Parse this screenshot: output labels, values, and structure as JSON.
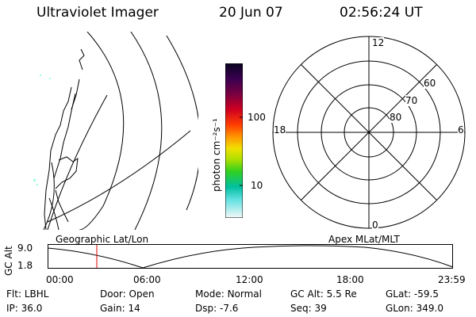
{
  "header": {
    "instrument": "Ultraviolet Imager",
    "date": "20 Jun 07",
    "time": "02:56:24 UT"
  },
  "colorbar": {
    "unit_label": "photon cm⁻²s⁻¹",
    "ticks": [
      "100",
      "10"
    ]
  },
  "polar_plot": {
    "mlt_labels": {
      "top": "12",
      "bottom": "0",
      "left": "18",
      "right": "6"
    },
    "lat_labels": [
      "60",
      "70",
      "80"
    ]
  },
  "orbit_panel": {
    "left_title": "Geographic Lat/Lon",
    "right_title": "Apex MLat/MLT",
    "axis_label": "GC Alt",
    "y_ticks": [
      "9.0",
      "1.8"
    ],
    "time_ticks": [
      "00:00",
      "06:00",
      "12:00",
      "18:00",
      "23:59"
    ]
  },
  "status": {
    "row1": [
      {
        "key": "Flt:",
        "value": "LBHL"
      },
      {
        "key": "Door:",
        "value": "Open"
      },
      {
        "key": "Mode:",
        "value": "Normal"
      },
      {
        "key": "GC Alt:",
        "value": "5.5 Re"
      },
      {
        "key": "GLat:",
        "value": "-59.5"
      }
    ],
    "row2": [
      {
        "key": "IP:",
        "value": "36.0"
      },
      {
        "key": "Gain:",
        "value": "14"
      },
      {
        "key": "Dsp:",
        "value": "-7.6"
      },
      {
        "key": "Seq:",
        "value": "39"
      },
      {
        "key": "GLon:",
        "value": "349.0"
      }
    ]
  }
}
